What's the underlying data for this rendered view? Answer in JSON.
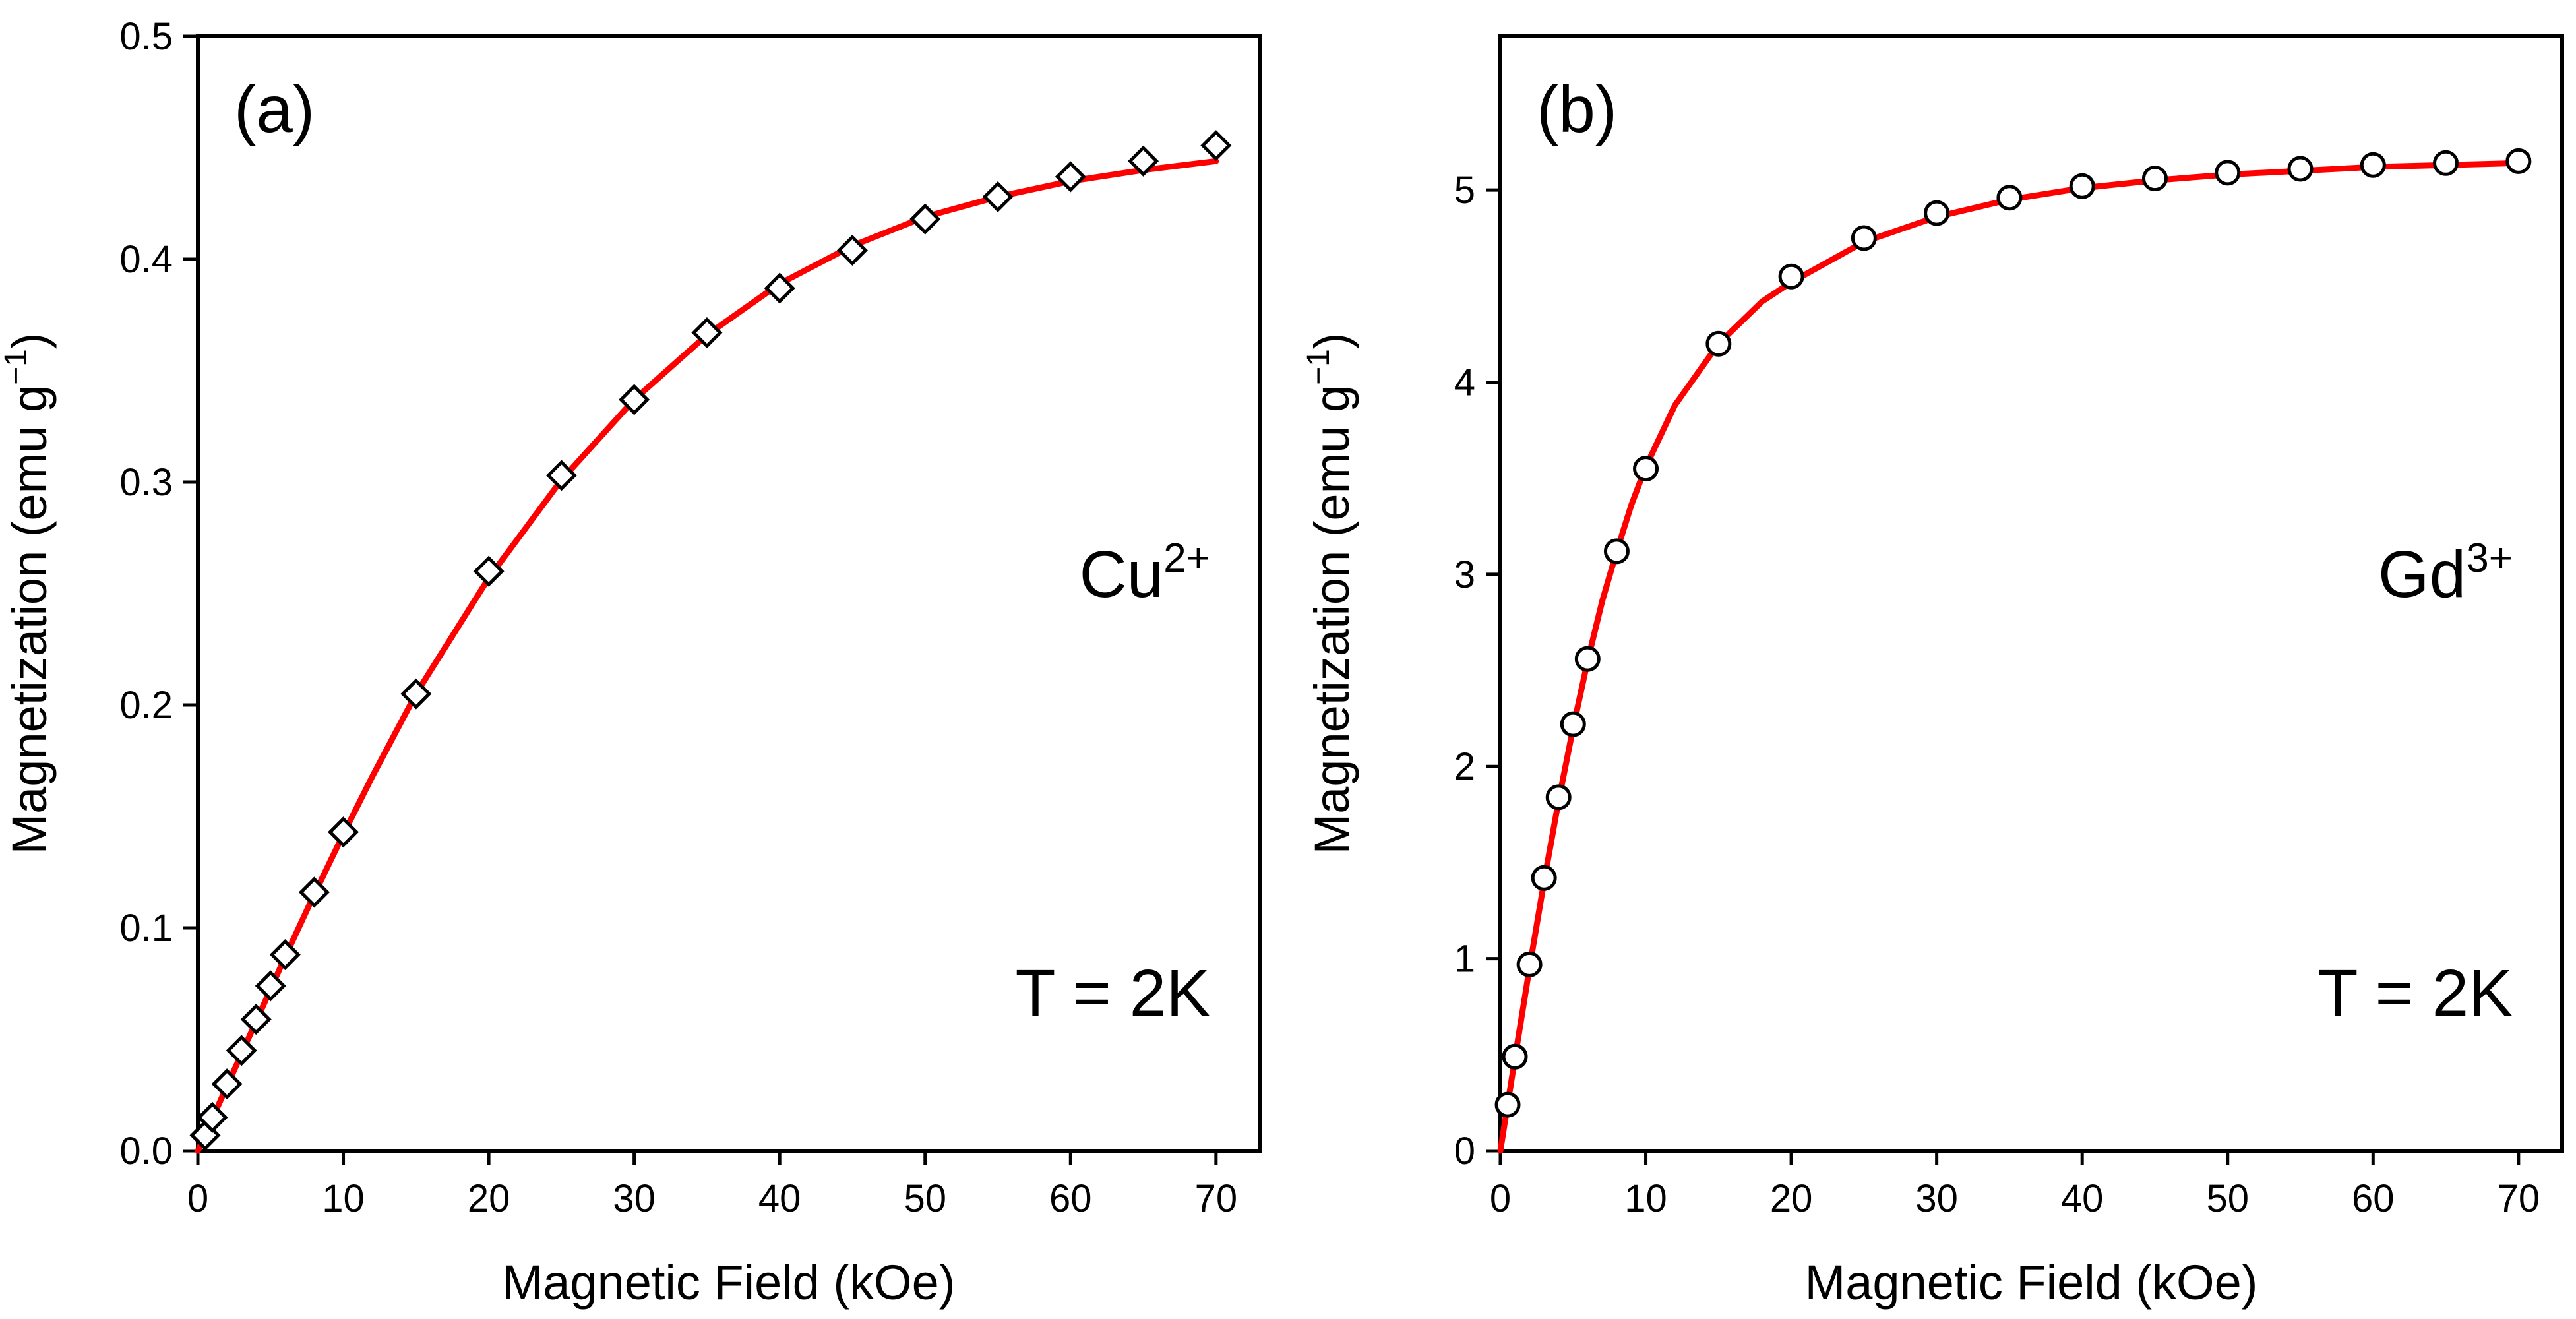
{
  "chart_data": [
    {
      "type": "scatter",
      "panel_label": "(a)",
      "annotations": {
        "ion": "Cu",
        "charge": "2+",
        "temperature": "T = 2K"
      },
      "xlabel": "Magnetic Field (kOe)",
      "ylabel": "Magnetization (emu g",
      "ylabel_unit_exponent": "−1",
      "ylabel_close": ")",
      "xlim": [
        0,
        73
      ],
      "ylim": [
        0,
        0.5
      ],
      "xticks": [
        "0",
        "10",
        "20",
        "30",
        "40",
        "50",
        "60",
        "70"
      ],
      "yticks": [
        "0.0",
        "0.1",
        "0.2",
        "0.3",
        "0.4",
        "0.5"
      ],
      "grid": false,
      "marker": "diamond",
      "fit_color": "#ff0000",
      "series": [
        {
          "x": [
            0.5,
            1,
            2,
            3,
            4,
            5,
            6,
            8,
            10,
            15,
            20,
            25,
            30,
            35,
            40,
            45,
            50,
            55,
            60,
            65,
            70
          ],
          "y": [
            0.007,
            0.015,
            0.03,
            0.045,
            0.059,
            0.074,
            0.088,
            0.116,
            0.143,
            0.205,
            0.26,
            0.303,
            0.337,
            0.367,
            0.387,
            0.404,
            0.418,
            0.428,
            0.437,
            0.444,
            0.451
          ]
        }
      ],
      "fit": {
        "x": [
          0,
          2,
          4,
          6,
          8,
          10,
          12,
          15,
          20,
          25,
          30,
          35,
          40,
          45,
          50,
          55,
          60,
          65,
          70
        ],
        "y": [
          0,
          0.029,
          0.058,
          0.087,
          0.115,
          0.142,
          0.168,
          0.205,
          0.257,
          0.301,
          0.337,
          0.366,
          0.389,
          0.406,
          0.419,
          0.428,
          0.435,
          0.44,
          0.444
        ]
      }
    },
    {
      "type": "scatter",
      "panel_label": "(b)",
      "annotations": {
        "ion": "Gd",
        "charge": "3+",
        "temperature": "T = 2K"
      },
      "xlabel": "Magnetic Field (kOe)",
      "ylabel": "Magnetization (emu g",
      "ylabel_unit_exponent": "−1",
      "ylabel_close": ")",
      "xlim": [
        0,
        73
      ],
      "ylim": [
        0,
        5.8
      ],
      "xticks": [
        "0",
        "10",
        "20",
        "30",
        "40",
        "50",
        "60",
        "70"
      ],
      "yticks": [
        "0",
        "1",
        "2",
        "3",
        "4",
        "5"
      ],
      "grid": false,
      "marker": "circle",
      "fit_color": "#ff0000",
      "series": [
        {
          "x": [
            0.5,
            1,
            2,
            3,
            4,
            5,
            6,
            8,
            10,
            15,
            20,
            25,
            30,
            35,
            40,
            45,
            50,
            55,
            60,
            65,
            70
          ],
          "y": [
            0.24,
            0.49,
            0.97,
            1.42,
            1.84,
            2.22,
            2.56,
            3.12,
            3.55,
            4.2,
            4.55,
            4.75,
            4.88,
            4.96,
            5.02,
            5.06,
            5.09,
            5.11,
            5.13,
            5.14,
            5.15
          ]
        }
      ],
      "fit": {
        "x": [
          0,
          1,
          2,
          3,
          4,
          5,
          6,
          7,
          8,
          9,
          10,
          12,
          15,
          18,
          20,
          25,
          30,
          35,
          40,
          45,
          50,
          55,
          60,
          65,
          70
        ],
        "y": [
          0,
          0.48,
          0.95,
          1.4,
          1.82,
          2.2,
          2.55,
          2.86,
          3.12,
          3.36,
          3.56,
          3.88,
          4.2,
          4.42,
          4.52,
          4.73,
          4.86,
          4.95,
          5.01,
          5.05,
          5.08,
          5.1,
          5.12,
          5.13,
          5.14
        ]
      }
    }
  ]
}
